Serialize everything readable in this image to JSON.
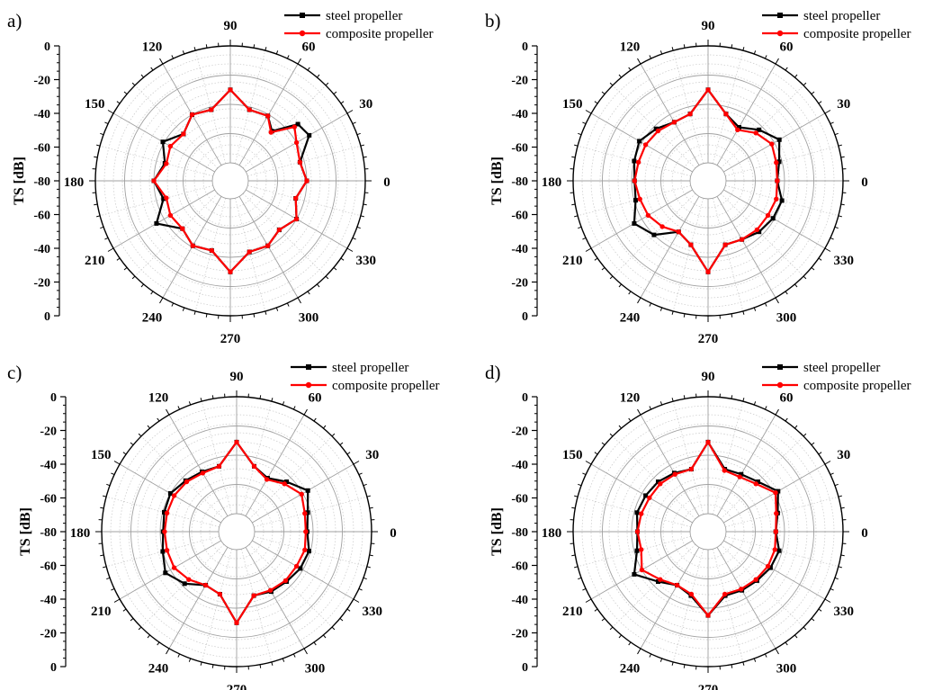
{
  "panel_labels": [
    "a)",
    "b)",
    "c)",
    "d)"
  ],
  "legend_labels": [
    "steel propeller",
    "composite propeller"
  ],
  "colors": {
    "steel": "#000000",
    "composite": "#ff0000",
    "grid_major": "#a0a0a0",
    "grid_minor": "#c8c8c8"
  },
  "chart_data": [
    {
      "type": "polar-line",
      "ylabel": "TS [dB]",
      "r_range": [
        -80,
        0
      ],
      "r_ticks": [
        "0",
        "-20",
        "-40",
        "-60",
        "-80",
        "-60",
        "-40",
        "-20",
        "0"
      ],
      "angle_ticks": [
        "0",
        "30",
        "60",
        "90",
        "120",
        "150",
        "180",
        "210",
        "240",
        "270",
        "300",
        "330"
      ],
      "legend_position": "top-right",
      "series": [
        {
          "name": "steel propeller",
          "theta": [
            0,
            15,
            30,
            40,
            50,
            60,
            75,
            90,
            105,
            120,
            135,
            150,
            165,
            180,
            195,
            210,
            225,
            240,
            255,
            270,
            285,
            300,
            315,
            330,
            345,
            360
          ],
          "r": [
            -40,
            -43,
            -30,
            -32,
            -48,
            -41,
            -42,
            -30,
            -42,
            -40,
            -47,
            -39,
            -46,
            -40,
            -45,
            -34,
            -46,
            -41,
            -43,
            -30,
            -42,
            -41,
            -45,
            -40,
            -46,
            -40
          ]
        },
        {
          "name": "composite propeller",
          "theta": [
            0,
            15,
            30,
            40,
            50,
            60,
            75,
            90,
            105,
            120,
            135,
            150,
            165,
            180,
            195,
            210,
            225,
            240,
            255,
            270,
            285,
            300,
            315,
            330,
            345,
            360
          ],
          "r": [
            -40,
            -43,
            -40,
            -35,
            -49,
            -41,
            -42,
            -30,
            -42,
            -40,
            -47,
            -45,
            -47,
            -40,
            -47,
            -45,
            -46,
            -41,
            -43,
            -30,
            -42,
            -41,
            -45,
            -40,
            -46,
            -40
          ]
        }
      ]
    },
    {
      "type": "polar-line",
      "ylabel": "TS [dB]",
      "r_range": [
        -80,
        0
      ],
      "r_ticks": [
        "0",
        "-20",
        "-40",
        "-60",
        "-80",
        "-60",
        "-40",
        "-20",
        "0"
      ],
      "angle_ticks": [
        "0",
        "30",
        "60",
        "90",
        "120",
        "150",
        "180",
        "210",
        "240",
        "270",
        "300",
        "330"
      ],
      "legend_position": "top-right",
      "series": [
        {
          "name": "steel propeller",
          "theta": [
            0,
            15,
            30,
            45,
            60,
            75,
            90,
            105,
            120,
            135,
            150,
            165,
            180,
            195,
            210,
            225,
            240,
            255,
            270,
            285,
            300,
            315,
            330,
            345,
            360
          ],
          "r": [
            -45,
            -42,
            -36,
            -43,
            -50,
            -45,
            -30,
            -45,
            -46,
            -42,
            -38,
            -40,
            -42,
            -41,
            -34,
            -40,
            -52,
            -47,
            -30,
            -47,
            -46,
            -43,
            -41,
            -40,
            -45
          ]
        },
        {
          "name": "composite propeller",
          "theta": [
            0,
            15,
            30,
            45,
            60,
            75,
            90,
            105,
            120,
            135,
            150,
            165,
            180,
            195,
            210,
            225,
            240,
            255,
            270,
            285,
            300,
            315,
            330,
            345,
            360
          ],
          "r": [
            -45,
            -44,
            -42,
            -46,
            -52,
            -45,
            -30,
            -45,
            -46,
            -44,
            -43,
            -43,
            -42,
            -44,
            -45,
            -48,
            -52,
            -47,
            -30,
            -47,
            -46,
            -45,
            -45,
            -44,
            -45
          ]
        }
      ]
    },
    {
      "type": "polar-line",
      "ylabel": "TS [dB]",
      "r_range": [
        -80,
        0
      ],
      "r_ticks": [
        "0",
        "-20",
        "-40",
        "-60",
        "-80",
        "-60",
        "-40",
        "-20",
        "0"
      ],
      "angle_ticks": [
        "0",
        "30",
        "60",
        "90",
        "120",
        "150",
        "180",
        "210",
        "240",
        "270",
        "300",
        "330"
      ],
      "legend_position": "top-right",
      "series": [
        {
          "name": "steel propeller",
          "theta": [
            0,
            15,
            30,
            45,
            60,
            75,
            90,
            105,
            120,
            135,
            150,
            165,
            180,
            195,
            210,
            225,
            240,
            255,
            270,
            285,
            300,
            315,
            330,
            345,
            360
          ],
          "r": [
            -44,
            -42,
            -36,
            -44,
            -50,
            -46,
            -31,
            -46,
            -45,
            -43,
            -40,
            -41,
            -42,
            -40,
            -36,
            -42,
            -50,
            -48,
            -30,
            -47,
            -45,
            -44,
            -42,
            -41,
            -44
          ]
        },
        {
          "name": "composite propeller",
          "theta": [
            0,
            15,
            30,
            45,
            60,
            75,
            90,
            105,
            120,
            135,
            150,
            165,
            180,
            195,
            210,
            225,
            240,
            255,
            270,
            285,
            300,
            315,
            330,
            345,
            360
          ],
          "r": [
            -45,
            -44,
            -41,
            -46,
            -51,
            -46,
            -31,
            -46,
            -46,
            -44,
            -43,
            -43,
            -43,
            -43,
            -43,
            -46,
            -50,
            -48,
            -30,
            -47,
            -46,
            -45,
            -45,
            -44,
            -45
          ]
        }
      ]
    },
    {
      "type": "polar-line",
      "ylabel": "TS [dB]",
      "r_range": [
        -80,
        0
      ],
      "r_ticks": [
        "0",
        "-20",
        "-40",
        "-60",
        "-80",
        "-60",
        "-40",
        "-20",
        "0"
      ],
      "angle_ticks": [
        "0",
        "30",
        "60",
        "90",
        "120",
        "150",
        "180",
        "210",
        "240",
        "270",
        "300",
        "330"
      ],
      "legend_position": "top-right",
      "series": [
        {
          "name": "steel propeller",
          "theta": [
            0,
            15,
            30,
            45,
            60,
            75,
            90,
            105,
            120,
            135,
            150,
            165,
            180,
            195,
            210,
            225,
            240,
            255,
            270,
            285,
            300,
            315,
            330,
            345,
            360
          ],
          "r": [
            -46,
            -43,
            -37,
            -44,
            -47,
            -48,
            -31,
            -48,
            -46,
            -44,
            -43,
            -42,
            -44,
            -42,
            -34,
            -44,
            -50,
            -47,
            -35,
            -47,
            -46,
            -45,
            -43,
            -42,
            -46
          ]
        },
        {
          "name": "composite propeller",
          "theta": [
            0,
            15,
            30,
            45,
            60,
            75,
            90,
            105,
            120,
            135,
            150,
            165,
            180,
            195,
            210,
            225,
            240,
            255,
            270,
            285,
            300,
            315,
            330,
            345,
            360
          ],
          "r": [
            -46,
            -44,
            -39,
            -46,
            -49,
            -49,
            -31,
            -48,
            -47,
            -46,
            -46,
            -45,
            -44,
            -45,
            -40,
            -46,
            -50,
            -48,
            -35,
            -48,
            -47,
            -46,
            -45,
            -45,
            -46
          ]
        }
      ]
    }
  ]
}
